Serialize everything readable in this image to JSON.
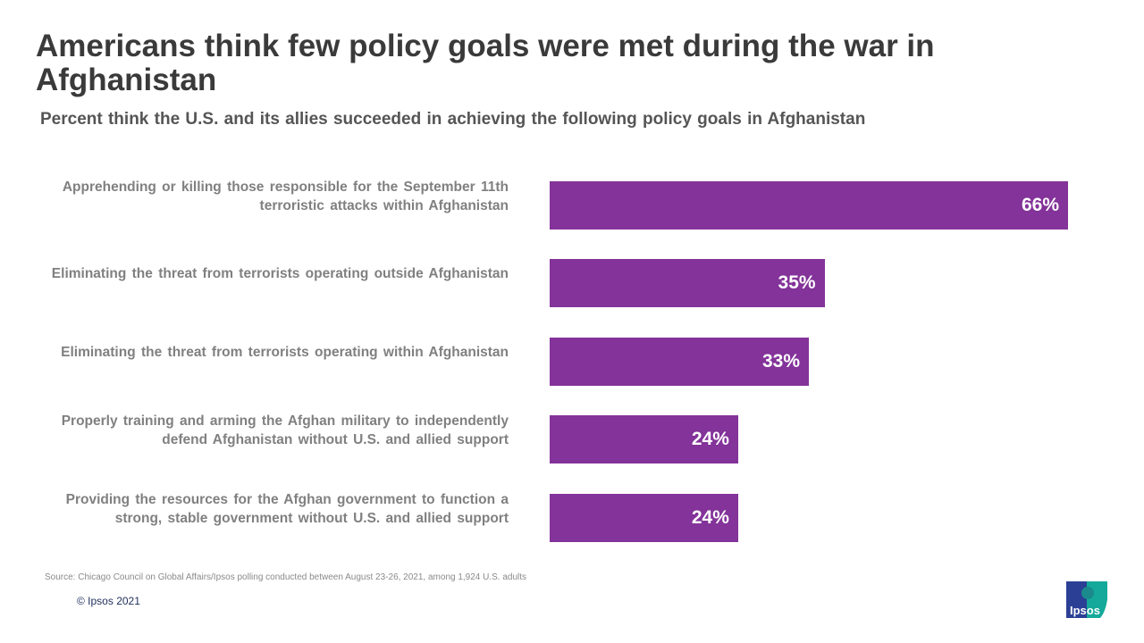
{
  "title": "Americans think few policy goals were met during the war in Afghanistan",
  "chart_data": {
    "type": "bar",
    "orientation": "horizontal",
    "subtitle": "Percent think the U.S. and its allies succeeded in achieving the following policy goals in Afghanistan",
    "categories": [
      "Apprehending or killing those responsible for the September 11th terroristic attacks within Afghanistan",
      "Eliminating the threat from terrorists operating outside Afghanistan",
      "Eliminating the threat from terrorists operating within Afghanistan",
      "Properly training and arming the Afghan military to independently defend Afghanistan without U.S. and allied support",
      "Providing the resources for the Afghan government to function a strong, stable government without U.S. and allied support"
    ],
    "values": [
      66,
      35,
      33,
      24,
      24
    ],
    "value_labels": [
      "66%",
      "35%",
      "33%",
      "24%",
      "24%"
    ],
    "xlim": [
      0,
      66
    ],
    "grid": false,
    "bar_color": "#833399"
  },
  "footer": {
    "source": "Source: Chicago Council on Global Affairs/Ipsos polling conducted between August 23-26, 2021, among 1,924 U.S. adults",
    "copyright": "© Ipsos 2021",
    "logo_text": "Ipsos"
  }
}
